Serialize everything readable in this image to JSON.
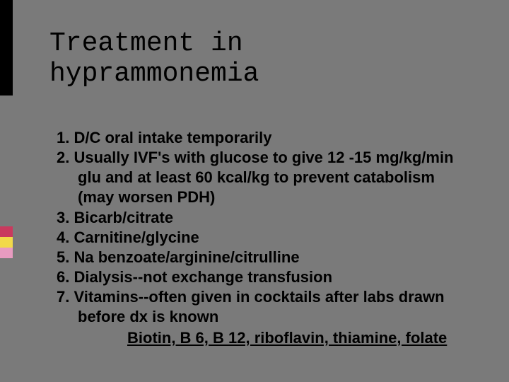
{
  "slide": {
    "title": "Treatment in hyprammonemia",
    "items": [
      "D/C oral intake temporarily",
      "Usually IVF's with glucose to give 12 -15 mg/kg/min glu and at least 60 kcal/kg to prevent catabolism (may worsen PDH)",
      "Bicarb/citrate",
      "Carnitine/glycine",
      "Na benzoate/arginine/citrulline",
      "Dialysis--not exchange transfusion",
      "Vitamins--often given in cocktails after labs drawn before dx is known"
    ],
    "vitamins_detail": "Biotin, B 6, B 12, riboflavin, thiamine, folate",
    "colors": {
      "background": "#7a7a7a",
      "text": "#000000",
      "accent_red": "#c93a5e",
      "accent_yellow": "#f2d94a",
      "accent_pink": "#e89bc0",
      "accent_black": "#000000"
    },
    "fonts": {
      "title_family": "Courier New",
      "title_size_pt": 28,
      "body_family": "Arial",
      "body_size_pt": 16,
      "body_weight": "bold"
    }
  }
}
